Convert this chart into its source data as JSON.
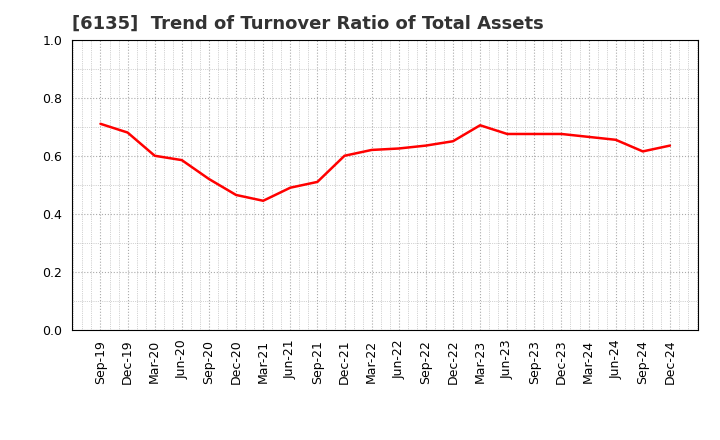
{
  "title": "[6135]  Trend of Turnover Ratio of Total Assets",
  "x_labels": [
    "Sep-19",
    "Dec-19",
    "Mar-20",
    "Jun-20",
    "Sep-20",
    "Dec-20",
    "Mar-21",
    "Jun-21",
    "Sep-21",
    "Dec-21",
    "Mar-22",
    "Jun-22",
    "Sep-22",
    "Dec-22",
    "Mar-23",
    "Jun-23",
    "Sep-23",
    "Dec-23",
    "Mar-24",
    "Jun-24",
    "Sep-24",
    "Dec-24"
  ],
  "y_values": [
    0.71,
    0.68,
    0.6,
    0.585,
    0.52,
    0.465,
    0.445,
    0.49,
    0.51,
    0.6,
    0.62,
    0.625,
    0.635,
    0.65,
    0.705,
    0.675,
    0.675,
    0.675,
    0.665,
    0.655,
    0.615,
    0.635
  ],
  "line_color": "#ff0000",
  "line_width": 1.8,
  "ylim": [
    0.0,
    1.0
  ],
  "yticks": [
    0.0,
    0.2,
    0.4,
    0.6,
    0.8,
    1.0
  ],
  "grid_color": "#aaaaaa",
  "background_color": "#ffffff",
  "title_fontsize": 13,
  "tick_fontsize": 9,
  "title_color": "#333333"
}
